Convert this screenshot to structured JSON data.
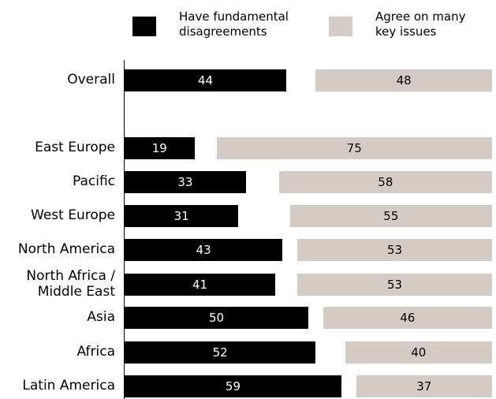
{
  "chart_data": {
    "type": "bar",
    "orientation": "horizontal",
    "layout": "diverging",
    "categories": [
      "Overall",
      "East Europe",
      "Pacific",
      "West Europe",
      "North America",
      "North Africa /\nMiddle East",
      "Asia",
      "Africa",
      "Latin America"
    ],
    "series": [
      {
        "name": "Have fundamental\ndisagreements",
        "color": "#000000",
        "label_color": "#ffffff",
        "values": [
          44,
          19,
          33,
          31,
          43,
          41,
          50,
          52,
          59
        ]
      },
      {
        "name": "Agree on many\nkey issues",
        "color": "#d4cbc5",
        "label_color": "#000000",
        "values": [
          48,
          75,
          58,
          55,
          53,
          53,
          46,
          40,
          37
        ]
      }
    ],
    "xlim": [
      0,
      100
    ],
    "legend_position": "top",
    "grid": false
  }
}
